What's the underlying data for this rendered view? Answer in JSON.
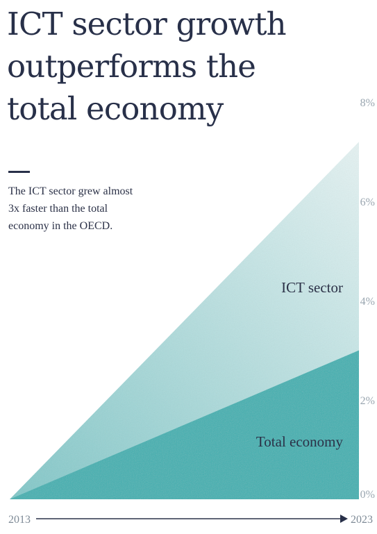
{
  "title_lines": [
    "ICT sector growth",
    "outperforms the",
    "total economy"
  ],
  "subtitle_lines": [
    "The ICT sector grew almost",
    "3x faster than the total",
    "economy in the OECD."
  ],
  "colors": {
    "ict_fill_light": "#e6f3f3",
    "ict_fill_dark": "#7fc7c8",
    "total_fill": "#3fb0b1",
    "text": "#283049",
    "tick": "#9aa6b0"
  },
  "chart_data": {
    "type": "area",
    "x": [
      "2013",
      "2023"
    ],
    "ylim": [
      0,
      8
    ],
    "y_ticks": [
      "8%",
      "6%",
      "4%",
      "2%",
      "0%"
    ],
    "y_tick_values": [
      8,
      6,
      4,
      2,
      0
    ],
    "series": [
      {
        "name": "ICT sector",
        "values": [
          0,
          7.2
        ]
      },
      {
        "name": "Total economy",
        "values": [
          0,
          3.0
        ]
      }
    ],
    "x_axis_arrow": true,
    "grid": false
  }
}
